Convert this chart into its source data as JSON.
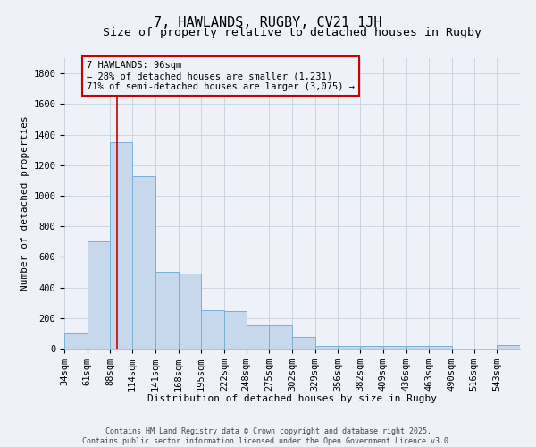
{
  "title1": "7, HAWLANDS, RUGBY, CV21 1JH",
  "title2": "Size of property relative to detached houses in Rugby",
  "xlabel": "Distribution of detached houses by size in Rugby",
  "ylabel": "Number of detached properties",
  "bar_color": "#c8d8ec",
  "bar_edge_color": "#7aafd4",
  "grid_color": "#c8d0de",
  "vline_x": 96,
  "vline_color": "#cc0000",
  "annotation_text": "7 HAWLANDS: 96sqm\n← 28% of detached houses are smaller (1,231)\n71% of semi-detached houses are larger (3,075) →",
  "annotation_box_color": "#cc0000",
  "bins": [
    34,
    61,
    88,
    114,
    141,
    168,
    195,
    222,
    248,
    275,
    302,
    329,
    356,
    382,
    409,
    436,
    463,
    490,
    516,
    543,
    570
  ],
  "bar_heights": [
    97,
    700,
    1350,
    1130,
    500,
    490,
    250,
    245,
    150,
    150,
    75,
    15,
    15,
    15,
    15,
    15,
    15,
    0,
    0,
    25
  ],
  "ylim": [
    0,
    1900
  ],
  "yticks": [
    0,
    200,
    400,
    600,
    800,
    1000,
    1200,
    1400,
    1600,
    1800
  ],
  "background_color": "#eef2f8",
  "footer_text": "Contains HM Land Registry data © Crown copyright and database right 2025.\nContains public sector information licensed under the Open Government Licence v3.0.",
  "title1_fontsize": 11,
  "title2_fontsize": 9.5,
  "xlabel_fontsize": 8,
  "ylabel_fontsize": 8,
  "tick_fontsize": 7.5,
  "footer_fontsize": 6
}
